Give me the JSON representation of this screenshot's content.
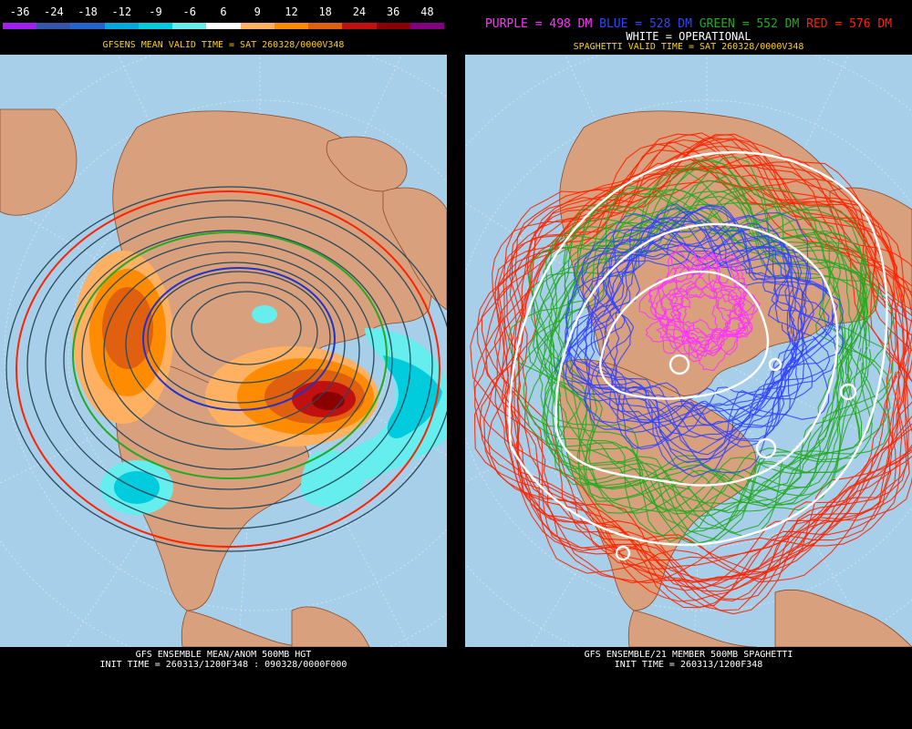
{
  "left_panel": {
    "legend": {
      "labels": [
        "-36",
        "-24",
        "-18",
        "-12",
        "-9",
        "-6",
        "6",
        "9",
        "12",
        "18",
        "24",
        "36",
        "48"
      ],
      "colors": [
        "#a020f0",
        "#3355aa",
        "#2266cc",
        "#00aadd",
        "#00ccdd",
        "#66eeee",
        "#ffffff",
        "#ffb060",
        "#ff8c00",
        "#e06010",
        "#c01010",
        "#8b0000",
        "#800080"
      ]
    },
    "valid_time": "GFSENS MEAN VALID TIME = SAT 260328/0000V348",
    "footer_line1": "GFS ENSEMBLE MEAN/ANOM 500MB HGT",
    "footer_line2": "INIT TIME = 260313/1200F348 : 090328/0000F000"
  },
  "right_panel": {
    "legend": {
      "purple": "PURPLE = 498 DM",
      "blue": "BLUE = 528 DM",
      "green": "GREEN = 552 DM",
      "red": "RED = 576 DM"
    },
    "operational": "WHITE = OPERATIONAL",
    "valid_time": "SPAGHETTI VALID TIME = SAT 260328/0000V348",
    "footer_line1": "GFS ENSEMBLE/21 MEMBER 500MB SPAGHETTI",
    "footer_line2": "INIT TIME = 260313/1200F348"
  },
  "colors": {
    "ocean": "#a7cfe9",
    "land": "#d9a07e",
    "purple": "#ff33ff",
    "blue": "#3344ff",
    "green": "#22aa22",
    "red": "#ff2200",
    "header_yellow": "#ffd200"
  }
}
